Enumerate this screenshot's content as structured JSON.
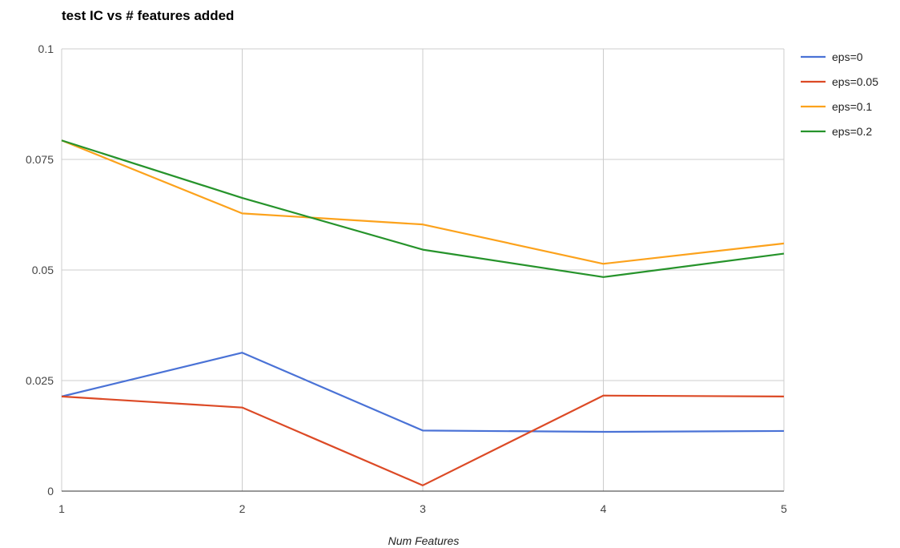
{
  "chart_data": {
    "type": "line",
    "title": "test IC vs # features added",
    "xlabel": "Num Features",
    "ylabel": "",
    "x": [
      1,
      2,
      3,
      4,
      5
    ],
    "xlim": [
      1,
      5
    ],
    "ylim": [
      0,
      0.1
    ],
    "yticks": [
      0,
      0.025,
      0.05,
      0.075,
      0.1
    ],
    "ytick_labels": [
      "0",
      "0.025",
      "0.05",
      "0.075",
      "0.1"
    ],
    "xtick_labels": [
      "1",
      "2",
      "3",
      "4",
      "5"
    ],
    "grid": true,
    "legend_position": "right",
    "series": [
      {
        "name": "eps=0",
        "color": "#4a72d6",
        "values": [
          0.0214,
          0.0313,
          0.0137,
          0.0134,
          0.0136
        ]
      },
      {
        "name": "eps=0.05",
        "color": "#dc4a26",
        "values": [
          0.0214,
          0.0189,
          0.0013,
          0.0216,
          0.0214
        ]
      },
      {
        "name": "eps=0.1",
        "color": "#fca21c",
        "values": [
          0.0793,
          0.0628,
          0.0603,
          0.0514,
          0.056
        ]
      },
      {
        "name": "eps=0.2",
        "color": "#26932b",
        "values": [
          0.0793,
          0.0663,
          0.0546,
          0.0484,
          0.0537
        ]
      }
    ]
  }
}
